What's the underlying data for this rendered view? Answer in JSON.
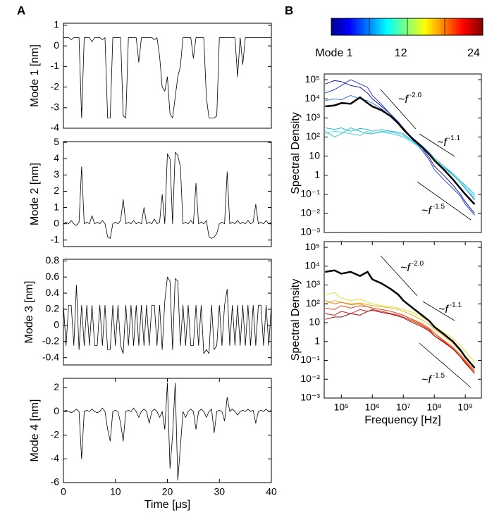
{
  "panel_labels": [
    "A",
    "B"
  ],
  "colorbar": {
    "range": [
      1,
      24
    ],
    "ticks": [
      {
        "value": 1,
        "label": "Mode 1"
      },
      12,
      24
    ]
  },
  "chart_data": [
    {
      "type": "line",
      "ylabel": "Mode 1 [nm]",
      "color": "#000000",
      "x": [
        0,
        0.5,
        1,
        1.5,
        2,
        2.5,
        3,
        3.5,
        4,
        4.5,
        5,
        5.5,
        6,
        6.5,
        7,
        7.5,
        8,
        8.5,
        9,
        9.5,
        10,
        10.5,
        11,
        11.5,
        12,
        12.5,
        13,
        13.5,
        14,
        14.5,
        15,
        15.5,
        16,
        16.5,
        17,
        17.5,
        18,
        18.5,
        19,
        19.5,
        20,
        20.5,
        21,
        21.5,
        22,
        22.5,
        23,
        23.5,
        24,
        24.5,
        25,
        25.5,
        26,
        26.5,
        27,
        27.5,
        28,
        28.5,
        29,
        29.5,
        30,
        30.5,
        31,
        31.5,
        32,
        32.5,
        33,
        33.5,
        34,
        34.5,
        35,
        35.5,
        36,
        36.5,
        37,
        37.5,
        38,
        38.5,
        39,
        39.5,
        40
      ],
      "values": [
        0.4,
        0.4,
        0.4,
        0.3,
        0.4,
        0.4,
        0.4,
        -3.5,
        0.4,
        0.4,
        0.4,
        0.2,
        0.4,
        0.4,
        0.4,
        0.3,
        0.4,
        -3.5,
        -3.5,
        0.4,
        0.4,
        0.4,
        0.4,
        -3.4,
        -3.5,
        0.4,
        0.4,
        0.4,
        0.4,
        -0.8,
        0.4,
        0.4,
        0.4,
        0.4,
        0.4,
        0.3,
        0.4,
        -0.5,
        -2,
        -2.2,
        -1.5,
        -3.3,
        -3.5,
        -2.5,
        -1.5,
        -1,
        0.4,
        0.4,
        0.4,
        0.4,
        -0.6,
        0.4,
        0.4,
        0.4,
        0.4,
        -2.5,
        -3.5,
        -3.5,
        -3.5,
        -3.4,
        0.4,
        0.4,
        0.4,
        0.4,
        0.4,
        0.4,
        0.4,
        -1.5,
        0.4,
        -0.9,
        0.4,
        0.4,
        0.4,
        0.4,
        0.4,
        0.4,
        0.4,
        0.4,
        0.4,
        0.4,
        0.4
      ],
      "xlim": [
        0,
        40
      ],
      "ylim": [
        -4,
        1.1
      ],
      "yticks": [
        1,
        0,
        -1,
        -2,
        -3,
        -4
      ]
    },
    {
      "type": "line",
      "ylabel": "Mode 2 [nm]",
      "color": "#000000",
      "x": [
        0,
        0.5,
        1,
        1.5,
        2,
        2.5,
        3,
        3.5,
        4,
        4.5,
        5,
        5.5,
        6,
        6.5,
        7,
        7.5,
        8,
        8.5,
        9,
        9.5,
        10,
        10.5,
        11,
        11.5,
        12,
        12.5,
        13,
        13.5,
        14,
        14.5,
        15,
        15.5,
        16,
        16.5,
        17,
        17.5,
        18,
        18.5,
        19,
        19.5,
        20,
        20.5,
        21,
        21.5,
        22,
        22.5,
        23,
        23.5,
        24,
        24.5,
        25,
        25.5,
        26,
        26.5,
        27,
        27.5,
        28,
        28.5,
        29,
        29.5,
        30,
        30.5,
        31,
        31.5,
        32,
        32.5,
        33,
        33.5,
        34,
        34.5,
        35,
        35.5,
        36,
        36.5,
        37,
        37.5,
        38,
        38.5,
        39,
        39.5,
        40
      ],
      "values": [
        0,
        0.1,
        0,
        0.2,
        0,
        -0.1,
        0.1,
        3.5,
        0,
        0.1,
        0,
        0.5,
        0,
        0.1,
        0,
        0.2,
        0,
        -0.8,
        -0.9,
        0,
        0.1,
        0,
        0.2,
        1.5,
        0,
        0.1,
        0,
        0.2,
        0,
        0.1,
        0,
        1.0,
        0,
        0.1,
        0,
        0.3,
        0,
        0.1,
        1.8,
        0,
        4.3,
        4.0,
        0,
        4.4,
        4.2,
        3.5,
        0,
        0.1,
        0,
        0.2,
        0,
        2.5,
        0,
        0.1,
        0,
        0.2,
        -0.8,
        -0.9,
        -0.8,
        -0.6,
        0,
        0.1,
        0,
        3.2,
        0,
        0.1,
        0,
        0.2,
        0,
        0.1,
        0,
        0.2,
        0,
        0.1,
        1.2,
        0,
        0.1,
        0,
        0.2,
        0,
        0.1
      ],
      "xlim": [
        0,
        40
      ],
      "ylim": [
        -1.4,
        5.05
      ],
      "yticks": [
        5,
        4,
        3,
        2,
        1,
        0,
        -1
      ]
    },
    {
      "type": "line",
      "ylabel": "Mode 3 [nm]",
      "color": "#000000",
      "x": [
        0,
        0.5,
        1,
        1.5,
        2,
        2.5,
        3,
        3.5,
        4,
        4.5,
        5,
        5.5,
        6,
        6.5,
        7,
        7.5,
        8,
        8.5,
        9,
        9.5,
        10,
        10.5,
        11,
        11.5,
        12,
        12.5,
        13,
        13.5,
        14,
        14.5,
        15,
        15.5,
        16,
        16.5,
        17,
        17.5,
        18,
        18.5,
        19,
        19.5,
        20,
        20.5,
        21,
        21.5,
        22,
        22.5,
        23,
        23.5,
        24,
        24.5,
        25,
        25.5,
        26,
        26.5,
        27,
        27.5,
        28,
        28.5,
        29,
        29.5,
        30,
        30.5,
        31,
        31.5,
        32,
        32.5,
        33,
        33.5,
        34,
        34.5,
        35,
        35.5,
        36,
        36.5,
        37,
        37.5,
        38,
        38.5,
        39,
        39.5,
        40
      ],
      "values": [
        0.25,
        -0.25,
        0.25,
        0.25,
        -0.25,
        0.5,
        -0.3,
        0.25,
        -0.25,
        0.25,
        -0.25,
        0.25,
        -0.25,
        -0.25,
        0.25,
        -0.25,
        0.25,
        -0.3,
        -0.3,
        0.25,
        -0.25,
        0.25,
        -0.25,
        -0.35,
        0.25,
        -0.25,
        0.25,
        -0.25,
        0.25,
        -0.25,
        0.25,
        -0.25,
        0.25,
        -0.25,
        0.25,
        0.25,
        -0.25,
        0.25,
        -0.3,
        0.3,
        0.6,
        0.55,
        -0.3,
        0.58,
        0.55,
        -0.25,
        0.25,
        -0.25,
        0.25,
        -0.25,
        -0.25,
        0.25,
        -0.25,
        0.25,
        -0.35,
        -0.3,
        -0.35,
        0.25,
        -0.3,
        -0.25,
        0.25,
        -0.25,
        0.25,
        0.45,
        -0.25,
        0.25,
        -0.25,
        0.25,
        -0.25,
        0.25,
        -0.25,
        0.25,
        -0.25,
        0.25,
        -0.25,
        0.25,
        0.25,
        -0.25,
        0.25,
        -0.25,
        0.25
      ],
      "xlim": [
        0,
        40
      ],
      "ylim": [
        -0.49,
        0.82
      ],
      "yticks": [
        0.8,
        0.6,
        0.4,
        0.2,
        0,
        -0.2,
        -0.4
      ]
    },
    {
      "type": "line",
      "ylabel": "Mode 4 [nm]",
      "xlabel": "Time [μs]",
      "color": "#000000",
      "x": [
        0,
        0.5,
        1,
        1.5,
        2,
        2.5,
        3,
        3.5,
        4,
        4.5,
        5,
        5.5,
        6,
        6.5,
        7,
        7.5,
        8,
        8.5,
        9,
        9.5,
        10,
        10.5,
        11,
        11.5,
        12,
        12.5,
        13,
        13.5,
        14,
        14.5,
        15,
        15.5,
        16,
        16.5,
        17,
        17.5,
        18,
        18.5,
        19,
        19.5,
        20,
        20.5,
        21,
        21.5,
        22,
        22.5,
        23,
        23.5,
        24,
        24.5,
        25,
        25.5,
        26,
        26.5,
        27,
        27.5,
        28,
        28.5,
        29,
        29.5,
        30,
        30.5,
        31,
        31.5,
        32,
        32.5,
        33,
        33.5,
        34,
        34.5,
        35,
        35.5,
        36,
        36.5,
        37,
        37.5,
        38,
        38.5,
        39,
        39.5,
        40
      ],
      "values": [
        0,
        0.1,
        0,
        -0.1,
        0,
        0.2,
        0,
        -4,
        0,
        0.1,
        0,
        0.2,
        0,
        -0.1,
        0,
        0.3,
        0,
        -1.5,
        -2.5,
        0,
        0.1,
        0,
        -1,
        -2.5,
        0,
        0.1,
        0,
        0.3,
        0,
        -0.5,
        0,
        0.2,
        0,
        -1,
        0,
        0.2,
        0,
        -0.5,
        0,
        -1.5,
        2.4,
        -4.8,
        -2,
        2.4,
        -5.8,
        -3,
        0,
        -0.5,
        0,
        0.2,
        0,
        -1.5,
        0,
        0.2,
        0,
        -0.5,
        0,
        0.2,
        -1.8,
        0,
        0.1,
        0,
        -0.8,
        1.2,
        0,
        0.2,
        0,
        -0.3,
        0,
        0.1,
        0,
        0.2,
        0,
        0.1,
        -1,
        0,
        0.1,
        0,
        0.2,
        0,
        0.1
      ],
      "xlim": [
        0,
        40
      ],
      "ylim": [
        -6,
        2.8
      ],
      "yticks": [
        2,
        0,
        -2,
        -4,
        -6
      ],
      "xticks": [
        0,
        10,
        20,
        30,
        40
      ]
    },
    {
      "type": "line",
      "ylabel": "Spectral Density",
      "xscale": "log",
      "yscale": "log",
      "x": [
        30000,
        60000,
        100000,
        200000,
        400000,
        700000,
        1000000,
        2000000,
        4000000,
        7000000,
        10000000,
        20000000,
        40000000,
        70000000,
        100000000,
        200000000,
        400000000,
        700000000,
        1000000000,
        2000000000
      ],
      "series": [
        {
          "color": "#1a1a9e",
          "values": [
            60000,
            90000,
            80000,
            50000,
            40000,
            20000,
            10000,
            4000,
            1500,
            600,
            300,
            80,
            25,
            8,
            3,
            1,
            0.3,
            0.1,
            0.04,
            0.01
          ]
        },
        {
          "color": "#2a3fd6",
          "values": [
            20000,
            30000,
            50000,
            100000,
            60000,
            40000,
            15000,
            5000,
            1500,
            600,
            250,
            70,
            20,
            6,
            2,
            0.6,
            0.2,
            0.08,
            0.03,
            0.008
          ]
        },
        {
          "color": "#3a7be8",
          "values": [
            8000,
            10000,
            9000,
            15000,
            10000,
            8000,
            6000,
            3000,
            1200,
            500,
            250,
            90,
            35,
            15,
            8,
            3,
            1,
            0.4,
            0.2,
            0.05
          ]
        },
        {
          "color": "#1fb5e0",
          "values": [
            300,
            250,
            300,
            200,
            280,
            250,
            200,
            250,
            200,
            180,
            150,
            60,
            25,
            12,
            6,
            2.5,
            1,
            0.4,
            0.2,
            0.06
          ]
        },
        {
          "color": "#48d4f0",
          "values": [
            150,
            200,
            180,
            150,
            120,
            200,
            150,
            180,
            150,
            120,
            100,
            50,
            25,
            12,
            6,
            3,
            1.2,
            0.5,
            0.25,
            0.08
          ]
        },
        {
          "color": "#2fc8c0",
          "values": [
            200,
            100,
            150,
            300,
            200,
            150,
            150,
            200,
            180,
            150,
            120,
            60,
            30,
            15,
            8,
            3,
            1.2,
            0.5,
            0.3,
            0.1
          ]
        },
        {
          "color": "#000000",
          "values": [
            4000,
            4500,
            6000,
            5500,
            12000,
            6000,
            4000,
            2500,
            1200,
            500,
            250,
            80,
            30,
            12,
            6,
            2,
            0.6,
            0.2,
            0.1,
            0.03
          ]
        }
      ],
      "xlim": [
        28000,
        3300000000
      ],
      "ylim": [
        0.001,
        200000
      ],
      "yticks": [
        {
          "value": 100000,
          "label": "10⁵"
        },
        {
          "value": 10000,
          "label": "10⁴"
        },
        {
          "value": 1000,
          "label": "10³"
        },
        {
          "value": 100,
          "label": "10²"
        },
        10,
        1,
        {
          "value": 0.1,
          "label": "10⁻¹"
        },
        {
          "value": 0.01,
          "label": "10⁻²"
        },
        {
          "value": 0.001,
          "label": "10⁻³"
        }
      ],
      "annotations": [
        {
          "text": "~f",
          "exponent": "-2.0"
        },
        {
          "text": "~f",
          "exponent": "-1.1"
        },
        {
          "text": "~f",
          "exponent": "-1.5"
        }
      ]
    },
    {
      "type": "line",
      "ylabel": "Spectral Density",
      "xlabel": "Frequency [Hz]",
      "xscale": "log",
      "yscale": "log",
      "x": [
        30000,
        60000,
        100000,
        200000,
        400000,
        700000,
        1000000,
        2000000,
        4000000,
        7000000,
        10000000,
        20000000,
        40000000,
        70000000,
        100000000,
        200000000,
        400000000,
        700000000,
        1000000000,
        2000000000
      ],
      "series": [
        {
          "color": "#e8e030",
          "values": [
            300,
            400,
            200,
            150,
            180,
            120,
            100,
            80,
            70,
            60,
            50,
            35,
            20,
            12,
            7,
            3,
            1.5,
            0.6,
            0.3,
            0.08
          ]
        },
        {
          "color": "#f0b020",
          "values": [
            100,
            150,
            120,
            100,
            110,
            90,
            80,
            70,
            60,
            50,
            40,
            25,
            14,
            8,
            4.5,
            2,
            0.8,
            0.3,
            0.15,
            0.04
          ]
        },
        {
          "color": "#f08020",
          "values": [
            150,
            100,
            120,
            90,
            100,
            70,
            60,
            50,
            40,
            30,
            25,
            15,
            9,
            5,
            3,
            1.2,
            0.5,
            0.2,
            0.1,
            0.03
          ]
        },
        {
          "color": "#e85020",
          "values": [
            60,
            50,
            80,
            60,
            80,
            70,
            60,
            50,
            40,
            30,
            25,
            14,
            8,
            4.5,
            2.5,
            1.1,
            0.45,
            0.18,
            0.09,
            0.025
          ]
        },
        {
          "color": "#d82020",
          "values": [
            30,
            25,
            40,
            30,
            50,
            40,
            50,
            40,
            30,
            25,
            20,
            12,
            7,
            4,
            2,
            1,
            0.4,
            0.15,
            0.08,
            0.02
          ]
        },
        {
          "color": "#9e1010",
          "values": [
            15,
            20,
            20,
            30,
            25,
            40,
            45,
            35,
            28,
            22,
            18,
            10,
            6,
            3.5,
            2,
            0.9,
            0.4,
            0.15,
            0.07,
            0.02
          ]
        },
        {
          "color": "#000000",
          "values": [
            5000,
            6000,
            4000,
            5000,
            3000,
            5000,
            2000,
            1200,
            600,
            300,
            150,
            60,
            25,
            12,
            6,
            2.5,
            1,
            0.35,
            0.15,
            0.04
          ]
        }
      ],
      "xlim": [
        28000,
        3300000000
      ],
      "ylim": [
        0.001,
        200000
      ],
      "yticks": [
        {
          "value": 100000,
          "label": "10⁵"
        },
        {
          "value": 10000,
          "label": "10⁴"
        },
        {
          "value": 1000,
          "label": "10³"
        },
        {
          "value": 100,
          "label": "10²"
        },
        10,
        1,
        {
          "value": 0.1,
          "label": "10⁻¹"
        },
        {
          "value": 0.01,
          "label": "10⁻²"
        },
        {
          "value": 0.001,
          "label": "10⁻³"
        }
      ],
      "xticks": [
        {
          "value": 100000,
          "label": "10⁵"
        },
        {
          "value": 1000000,
          "label": "10⁶"
        },
        {
          "value": 10000000,
          "label": "10⁷"
        },
        {
          "value": 100000000,
          "label": "10⁸"
        },
        {
          "value": 1000000000,
          "label": "10⁹"
        }
      ],
      "annotations": [
        {
          "text": "~f",
          "exponent": "-2.0"
        },
        {
          "text": "~f",
          "exponent": "-1.1"
        },
        {
          "text": "~f",
          "exponent": "-1.5"
        }
      ]
    }
  ]
}
